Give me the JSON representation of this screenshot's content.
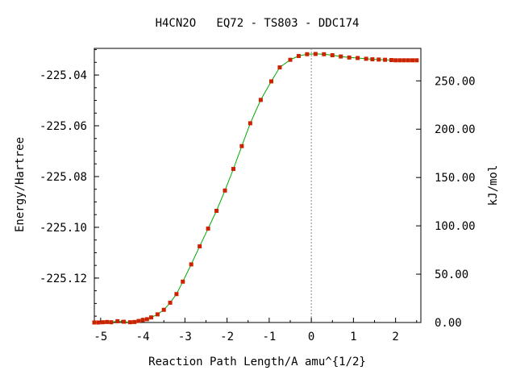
{
  "chart_data": {
    "type": "line",
    "title": "H4CN2O   EQ72 - TS803 - DDC174",
    "xlabel": "Reaction Path Length/A amu^{1/2}",
    "ylabel": "Energy/Hartree",
    "y2label": "kJ/mol",
    "xlim": [
      -5.15,
      2.6
    ],
    "ylim": [
      -225.1375,
      -225.0295
    ],
    "y2lim": [
      0,
      283.6
    ],
    "x_ticks": [
      {
        "value": -5,
        "label": "-5"
      },
      {
        "value": -4,
        "label": "-4"
      },
      {
        "value": -3,
        "label": "-3"
      },
      {
        "value": -2,
        "label": "-2"
      },
      {
        "value": -1,
        "label": "-1"
      },
      {
        "value": 0,
        "label": "0"
      },
      {
        "value": 1,
        "label": "1"
      },
      {
        "value": 2,
        "label": "2"
      }
    ],
    "y_ticks": [
      {
        "value": -225.04,
        "label": "-225.04"
      },
      {
        "value": -225.06,
        "label": "-225.06"
      },
      {
        "value": -225.08,
        "label": "-225.08"
      },
      {
        "value": -225.1,
        "label": "-225.10"
      },
      {
        "value": -225.12,
        "label": "-225.12"
      }
    ],
    "y2_ticks": [
      {
        "value": 0,
        "label": "0.00"
      },
      {
        "value": 50,
        "label": "50.00"
      },
      {
        "value": 100,
        "label": "100.00"
      },
      {
        "value": 150,
        "label": "150.00"
      },
      {
        "value": 200,
        "label": "200.00"
      },
      {
        "value": 250,
        "label": "250.00"
      }
    ],
    "ts_x": 0,
    "line_color": "#00aa00",
    "marker_color": "#cc2200",
    "series": [
      {
        "x": [
          -5.15,
          -5.05,
          -4.95,
          -4.85,
          -4.75,
          -4.6,
          -4.45,
          -4.3,
          -4.2,
          -4.1,
          -4.0,
          -3.9,
          -3.8,
          -3.65,
          -3.5,
          -3.35,
          -3.2,
          -3.05,
          -2.85,
          -2.65,
          -2.45,
          -2.25,
          -2.05,
          -1.85,
          -1.65,
          -1.45,
          -1.2,
          -0.95,
          -0.75,
          -0.5,
          -0.3,
          -0.1,
          0.1,
          0.3,
          0.5,
          0.7,
          0.9,
          1.1,
          1.3,
          1.45,
          1.6,
          1.75,
          1.9,
          2.0,
          2.1,
          2.2,
          2.3,
          2.4,
          2.5
        ],
        "y": [
          -225.1375,
          -225.1375,
          -225.1374,
          -225.1373,
          -225.1374,
          -225.137,
          -225.1372,
          -225.1374,
          -225.1373,
          -225.1369,
          -225.1365,
          -225.1362,
          -225.1355,
          -225.1343,
          -225.1325,
          -225.1297,
          -225.1263,
          -225.1214,
          -225.1146,
          -225.1075,
          -225.1005,
          -225.0935,
          -225.0855,
          -225.077,
          -225.068,
          -225.059,
          -225.0498,
          -225.0425,
          -225.037,
          -225.034,
          -225.0325,
          -225.0318,
          -225.0317,
          -225.0318,
          -225.0322,
          -225.0327,
          -225.0331,
          -225.0333,
          -225.0336,
          -225.0338,
          -225.0339,
          -225.034,
          -225.0341,
          -225.0342,
          -225.0342,
          -225.0342,
          -225.0342,
          -225.0342,
          -225.0342
        ]
      }
    ]
  }
}
